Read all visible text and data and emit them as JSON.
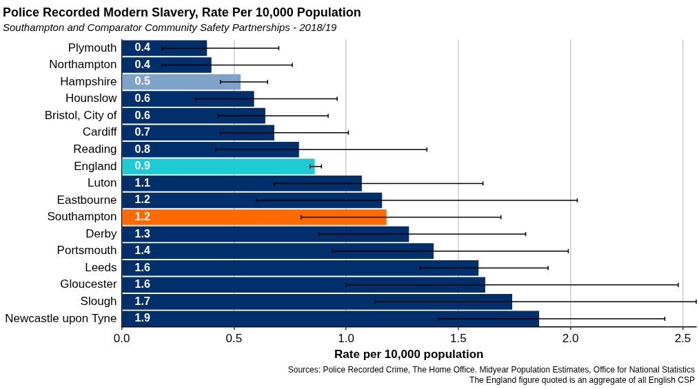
{
  "chart_data": {
    "type": "bar",
    "orientation": "horizontal",
    "title": "Police Recorded Modern Slavery, Rate Per 10,000 Population",
    "subtitle": "Southampton and Comparator Community Safety Partnerships - 2018/19",
    "xlabel": "Rate per 10,000 population",
    "categories": [
      "Plymouth",
      "Northampton",
      "Hampshire",
      "Hounslow",
      "Bristol, City of",
      "Cardiff",
      "Reading",
      "England",
      "Luton",
      "Eastbourne",
      "Southampton",
      "Derby",
      "Portsmouth",
      "Leeds",
      "Gloucester",
      "Slough",
      "Newcastle upon Tyne"
    ],
    "values": [
      0.38,
      0.4,
      0.53,
      0.59,
      0.64,
      0.68,
      0.79,
      0.86,
      1.07,
      1.16,
      1.18,
      1.28,
      1.39,
      1.59,
      1.62,
      1.74,
      1.86
    ],
    "value_labels": [
      "0.4",
      "0.4",
      "0.5",
      "0.6",
      "0.6",
      "0.7",
      "0.8",
      "0.9",
      "1.1",
      "1.2",
      "1.2",
      "1.3",
      "1.4",
      "1.6",
      "1.6",
      "1.7",
      "1.9"
    ],
    "errors": [
      [
        0.18,
        0.7
      ],
      [
        0.18,
        0.76
      ],
      [
        0.44,
        0.65
      ],
      [
        0.33,
        0.96
      ],
      [
        0.43,
        0.92
      ],
      [
        0.44,
        1.01
      ],
      [
        0.42,
        1.36
      ],
      [
        0.84,
        0.89
      ],
      [
        0.68,
        1.61
      ],
      [
        0.6,
        2.03
      ],
      [
        0.8,
        1.69
      ],
      [
        0.88,
        1.8
      ],
      [
        0.94,
        1.99
      ],
      [
        1.33,
        1.9
      ],
      [
        1.0,
        2.48
      ],
      [
        1.13,
        2.56
      ],
      [
        1.41,
        2.42
      ]
    ],
    "colors": [
      "#002f6c",
      "#002f6c",
      "#7fa3c8",
      "#002f6c",
      "#002f6c",
      "#002f6c",
      "#002f6c",
      "#1ecbd4",
      "#002f6c",
      "#002f6c",
      "#ff6a00",
      "#002f6c",
      "#002f6c",
      "#002f6c",
      "#002f6c",
      "#002f6c",
      "#002f6c"
    ],
    "xlim": [
      0,
      2.56
    ],
    "xticks": [
      {
        "value": 0,
        "label": "0.0"
      },
      0.5,
      {
        "value": 1,
        "label": "1.0"
      },
      1.5,
      {
        "value": 2,
        "label": "2.0"
      },
      2.5
    ],
    "grid": "x",
    "legend": false,
    "annotations": [
      "Sources: Police Recorded Crime, The Home Office.  Midyear Population Estimates, Office for National Statistics",
      "The England figure quoted is an aggregate of all English CSP"
    ]
  }
}
